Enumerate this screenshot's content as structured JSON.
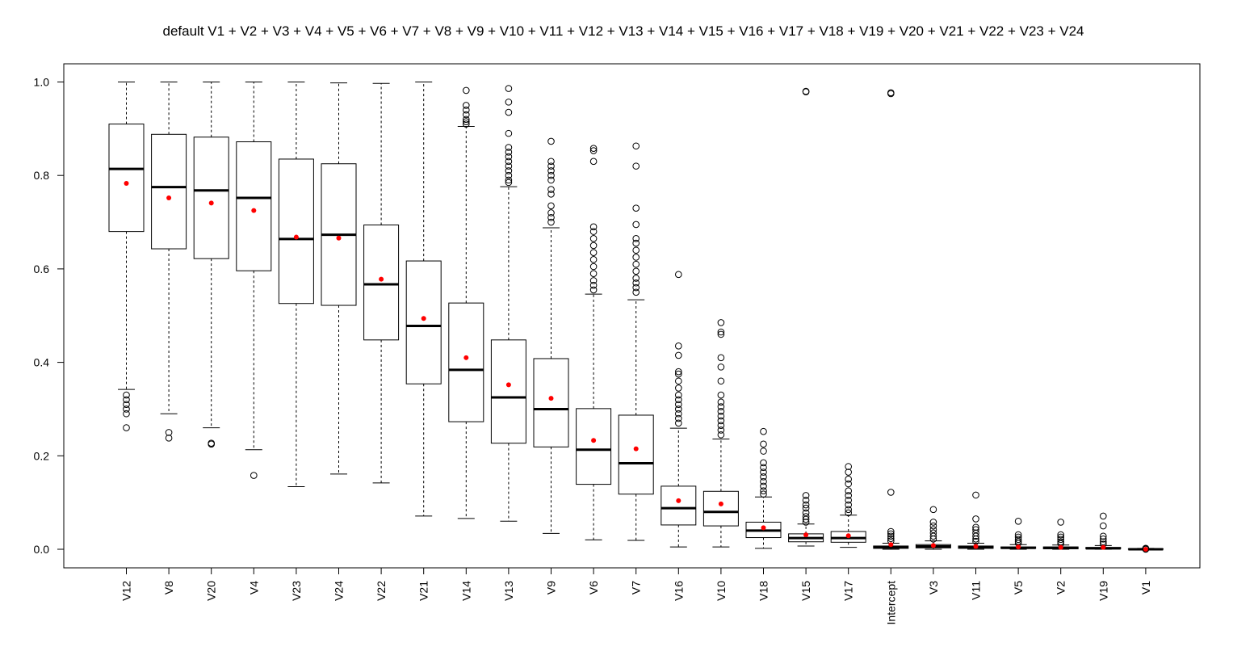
{
  "chart_data": {
    "type": "boxplot",
    "title": "default V1 + V2 + V3 + V4 + V5 + V6 + V7 + V8 + V9 + V10 + V11 + V12 + V13 + V14 + V15 + V16 + V17 + V18 + V19 + V20 + V21 + V22 + V23 + V24",
    "xlabel": "",
    "ylabel": "",
    "ylim": [
      -0.04,
      1.04
    ],
    "yticks": [
      "0.0",
      "0.2",
      "0.4",
      "0.6",
      "0.8",
      "1.0"
    ],
    "grid": false,
    "legend": "none",
    "colors": {
      "box": "#000000",
      "median": "#000000",
      "mean": "#ff0000",
      "outlier": "#000000"
    },
    "categories": [
      "V12",
      "V8",
      "V20",
      "V4",
      "V23",
      "V24",
      "V22",
      "V21",
      "V14",
      "V13",
      "V9",
      "V6",
      "V7",
      "V16",
      "V10",
      "V18",
      "V15",
      "V17",
      "Intercept",
      "V3",
      "V11",
      "V5",
      "V2",
      "V19",
      "V1"
    ],
    "boxes": [
      {
        "name": "V12",
        "whisker_low": 0.342,
        "q1": 0.68,
        "median": 0.814,
        "q3": 0.91,
        "whisker_high": 1.0,
        "mean": 0.783,
        "outliers": [
          0.26,
          0.29,
          0.3,
          0.31,
          0.32,
          0.33
        ]
      },
      {
        "name": "V8",
        "whisker_low": 0.29,
        "q1": 0.643,
        "median": 0.775,
        "q3": 0.888,
        "whisker_high": 1.0,
        "mean": 0.752,
        "outliers": [
          0.238,
          0.25
        ]
      },
      {
        "name": "V20",
        "whisker_low": 0.26,
        "q1": 0.622,
        "median": 0.768,
        "q3": 0.882,
        "whisker_high": 1.0,
        "mean": 0.741,
        "outliers": [
          0.225,
          0.227
        ]
      },
      {
        "name": "V4",
        "whisker_low": 0.213,
        "q1": 0.596,
        "median": 0.752,
        "q3": 0.872,
        "whisker_high": 1.0,
        "mean": 0.725,
        "outliers": [
          0.158
        ]
      },
      {
        "name": "V23",
        "whisker_low": 0.134,
        "q1": 0.526,
        "median": 0.664,
        "q3": 0.835,
        "whisker_high": 1.0,
        "mean": 0.668,
        "outliers": []
      },
      {
        "name": "V24",
        "whisker_low": 0.161,
        "q1": 0.522,
        "median": 0.673,
        "q3": 0.825,
        "whisker_high": 0.998,
        "mean": 0.666,
        "outliers": []
      },
      {
        "name": "V22",
        "whisker_low": 0.142,
        "q1": 0.448,
        "median": 0.567,
        "q3": 0.694,
        "whisker_high": 0.997,
        "mean": 0.578,
        "outliers": []
      },
      {
        "name": "V21",
        "whisker_low": 0.071,
        "q1": 0.354,
        "median": 0.478,
        "q3": 0.617,
        "whisker_high": 1.0,
        "mean": 0.494,
        "outliers": []
      },
      {
        "name": "V14",
        "whisker_low": 0.066,
        "q1": 0.273,
        "median": 0.384,
        "q3": 0.527,
        "whisker_high": 0.905,
        "mean": 0.41,
        "outliers": [
          0.91,
          0.915,
          0.92,
          0.93,
          0.94,
          0.95,
          0.982
        ]
      },
      {
        "name": "V13",
        "whisker_low": 0.06,
        "q1": 0.227,
        "median": 0.325,
        "q3": 0.448,
        "whisker_high": 0.776,
        "mean": 0.352,
        "outliers": [
          0.785,
          0.79,
          0.8,
          0.81,
          0.82,
          0.83,
          0.84,
          0.85,
          0.86,
          0.89,
          0.935,
          0.957,
          0.986
        ]
      },
      {
        "name": "V9",
        "whisker_low": 0.034,
        "q1": 0.219,
        "median": 0.3,
        "q3": 0.408,
        "whisker_high": 0.688,
        "mean": 0.323,
        "outliers": [
          0.7,
          0.71,
          0.72,
          0.735,
          0.76,
          0.77,
          0.79,
          0.8,
          0.81,
          0.82,
          0.83,
          0.873
        ]
      },
      {
        "name": "V6",
        "whisker_low": 0.02,
        "q1": 0.139,
        "median": 0.213,
        "q3": 0.301,
        "whisker_high": 0.546,
        "mean": 0.233,
        "outliers": [
          0.555,
          0.565,
          0.575,
          0.59,
          0.605,
          0.62,
          0.635,
          0.65,
          0.665,
          0.68,
          0.69,
          0.83,
          0.853,
          0.858
        ]
      },
      {
        "name": "V7",
        "whisker_low": 0.019,
        "q1": 0.118,
        "median": 0.184,
        "q3": 0.287,
        "whisker_high": 0.534,
        "mean": 0.215,
        "outliers": [
          0.55,
          0.56,
          0.57,
          0.58,
          0.595,
          0.61,
          0.625,
          0.64,
          0.655,
          0.665,
          0.695,
          0.73,
          0.82,
          0.863
        ]
      },
      {
        "name": "V16",
        "whisker_low": 0.005,
        "q1": 0.052,
        "median": 0.088,
        "q3": 0.135,
        "whisker_high": 0.259,
        "mean": 0.104,
        "outliers": [
          0.27,
          0.28,
          0.29,
          0.3,
          0.31,
          0.32,
          0.33,
          0.345,
          0.36,
          0.375,
          0.38,
          0.415,
          0.435,
          0.588
        ]
      },
      {
        "name": "V10",
        "whisker_low": 0.005,
        "q1": 0.05,
        "median": 0.08,
        "q3": 0.124,
        "whisker_high": 0.236,
        "mean": 0.097,
        "outliers": [
          0.245,
          0.255,
          0.265,
          0.275,
          0.285,
          0.295,
          0.305,
          0.315,
          0.33,
          0.36,
          0.39,
          0.41,
          0.46,
          0.465,
          0.485
        ]
      },
      {
        "name": "V18",
        "whisker_low": 0.002,
        "q1": 0.025,
        "median": 0.04,
        "q3": 0.058,
        "whisker_high": 0.112,
        "mean": 0.046,
        "outliers": [
          0.118,
          0.125,
          0.135,
          0.145,
          0.155,
          0.165,
          0.175,
          0.185,
          0.21,
          0.225,
          0.252
        ]
      },
      {
        "name": "V15",
        "whisker_low": 0.007,
        "q1": 0.016,
        "median": 0.024,
        "q3": 0.033,
        "whisker_high": 0.054,
        "mean": 0.031,
        "outliers": [
          0.058,
          0.064,
          0.07,
          0.078,
          0.088,
          0.095,
          0.105,
          0.115,
          0.979,
          0.98
        ]
      },
      {
        "name": "V17",
        "whisker_low": 0.004,
        "q1": 0.015,
        "median": 0.024,
        "q3": 0.038,
        "whisker_high": 0.073,
        "mean": 0.029,
        "outliers": [
          0.078,
          0.085,
          0.095,
          0.105,
          0.115,
          0.125,
          0.14,
          0.15,
          0.165,
          0.177
        ]
      },
      {
        "name": "Intercept",
        "whisker_low": 0.0,
        "q1": 0.002,
        "median": 0.004,
        "q3": 0.007,
        "whisker_high": 0.013,
        "mean": 0.01,
        "outliers": [
          0.018,
          0.023,
          0.028,
          0.033,
          0.038,
          0.122,
          0.975,
          0.977
        ]
      },
      {
        "name": "V3",
        "whisker_low": 0.0,
        "q1": 0.003,
        "median": 0.006,
        "q3": 0.01,
        "whisker_high": 0.018,
        "mean": 0.008,
        "outliers": [
          0.022,
          0.028,
          0.035,
          0.042,
          0.05,
          0.058,
          0.085
        ]
      },
      {
        "name": "V11",
        "whisker_low": 0.0,
        "q1": 0.002,
        "median": 0.004,
        "q3": 0.007,
        "whisker_high": 0.013,
        "mean": 0.006,
        "outliers": [
          0.017,
          0.022,
          0.028,
          0.035,
          0.042,
          0.047,
          0.065,
          0.116
        ]
      },
      {
        "name": "V5",
        "whisker_low": 0.0,
        "q1": 0.002,
        "median": 0.003,
        "q3": 0.005,
        "whisker_high": 0.01,
        "mean": 0.005,
        "outliers": [
          0.013,
          0.017,
          0.021,
          0.026,
          0.031,
          0.06
        ]
      },
      {
        "name": "V2",
        "whisker_low": 0.0,
        "q1": 0.001,
        "median": 0.003,
        "q3": 0.005,
        "whisker_high": 0.009,
        "mean": 0.004,
        "outliers": [
          0.012,
          0.016,
          0.021,
          0.026,
          0.031,
          0.058
        ]
      },
      {
        "name": "V19",
        "whisker_low": 0.0,
        "q1": 0.001,
        "median": 0.002,
        "q3": 0.004,
        "whisker_high": 0.008,
        "mean": 0.004,
        "outliers": [
          0.011,
          0.016,
          0.022,
          0.028,
          0.05,
          0.071
        ]
      },
      {
        "name": "V1",
        "whisker_low": 0.0,
        "q1": 0.0,
        "median": 0.0,
        "q3": 0.001,
        "whisker_high": 0.002,
        "mean": 0.0,
        "outliers": [
          0.0,
          0.001,
          0.002
        ]
      }
    ]
  }
}
